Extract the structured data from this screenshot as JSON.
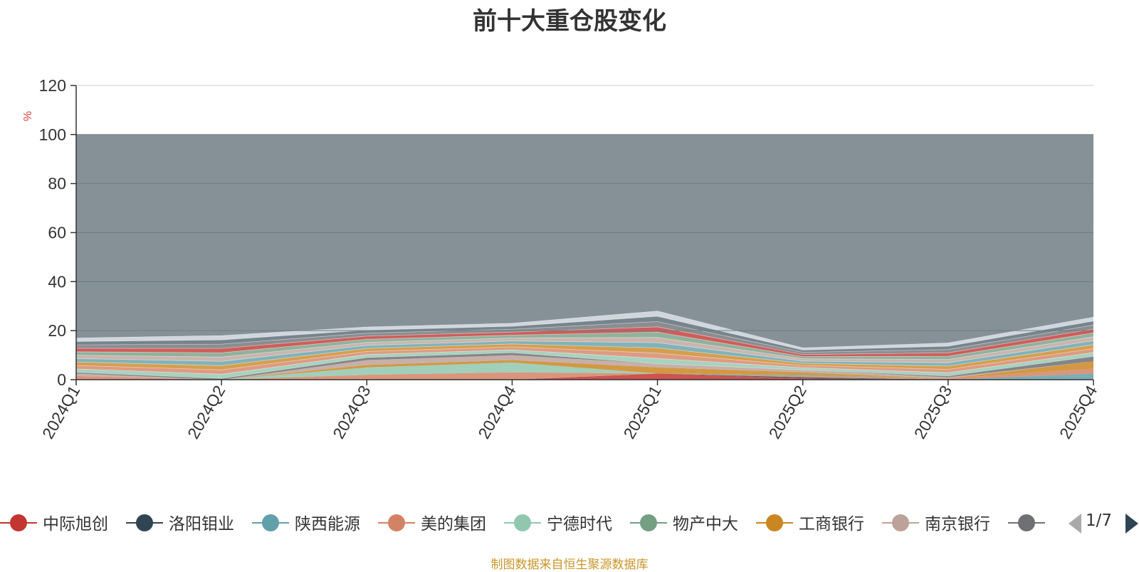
{
  "chart_data": {
    "type": "area",
    "title": "前十大重仓股变化",
    "ylabel": "%",
    "xlabel": "",
    "ylim": [
      0,
      120
    ],
    "yticks": [
      "0",
      "20",
      "40",
      "60",
      "80",
      "100",
      "120"
    ],
    "categories": [
      "2024Q1",
      "2024Q2",
      "2024Q3",
      "2024Q4",
      "2025Q1",
      "2025Q2",
      "2025Q3",
      "2025Q4"
    ],
    "stacked": true,
    "grid": true,
    "legend_position": "bottom",
    "top_total": [
      100,
      100,
      100,
      100,
      100,
      100,
      100,
      100
    ],
    "colored_top": [
      17,
      18,
      21.5,
      23,
      28,
      13,
      15,
      25.5
    ],
    "series": [
      {
        "name": "中际旭创",
        "color": "#c23531",
        "values": [
          0,
          0,
          0,
          0,
          2.5,
          0.5,
          0,
          0
        ]
      },
      {
        "name": "洛阳钼业",
        "color": "#2f4554",
        "values": [
          0,
          0,
          0,
          0,
          0,
          0.5,
          0,
          0
        ]
      },
      {
        "name": "陕西能源",
        "color": "#61a0a8",
        "values": [
          0,
          0,
          0,
          0,
          0,
          0,
          0,
          2.5
        ]
      },
      {
        "name": "美的集团",
        "color": "#d48265",
        "values": [
          1.5,
          0,
          2,
          3,
          0,
          0.5,
          0.5,
          2
        ]
      },
      {
        "name": "宁德时代",
        "color": "#91c7ae",
        "values": [
          0,
          0,
          3,
          4,
          0,
          0,
          0,
          0
        ]
      },
      {
        "name": "物产中大",
        "color": "#749f83",
        "values": [
          0,
          0,
          0,
          0,
          0,
          0.5,
          0,
          0
        ]
      },
      {
        "name": "工商银行",
        "color": "#ca8622",
        "values": [
          0,
          0,
          1,
          1,
          2.5,
          1,
          0,
          3
        ]
      },
      {
        "name": "南京银行",
        "color": "#bda29a",
        "values": [
          1,
          0,
          2,
          2,
          1.5,
          1,
          0.5,
          0
        ]
      },
      {
        "name": "",
        "color": "#6e7074",
        "values": [
          0.5,
          0.5,
          1,
          1,
          0,
          0,
          0.5,
          2
        ]
      }
    ],
    "pager": "1/7"
  },
  "source_note": "制图数据来自恒生聚源数据库",
  "colors": {
    "remainder_area": "#859197",
    "grid_line": "#6d7b83",
    "axis": "#333333",
    "ylabel": "#e0413c",
    "source_note": "#c8962a"
  }
}
